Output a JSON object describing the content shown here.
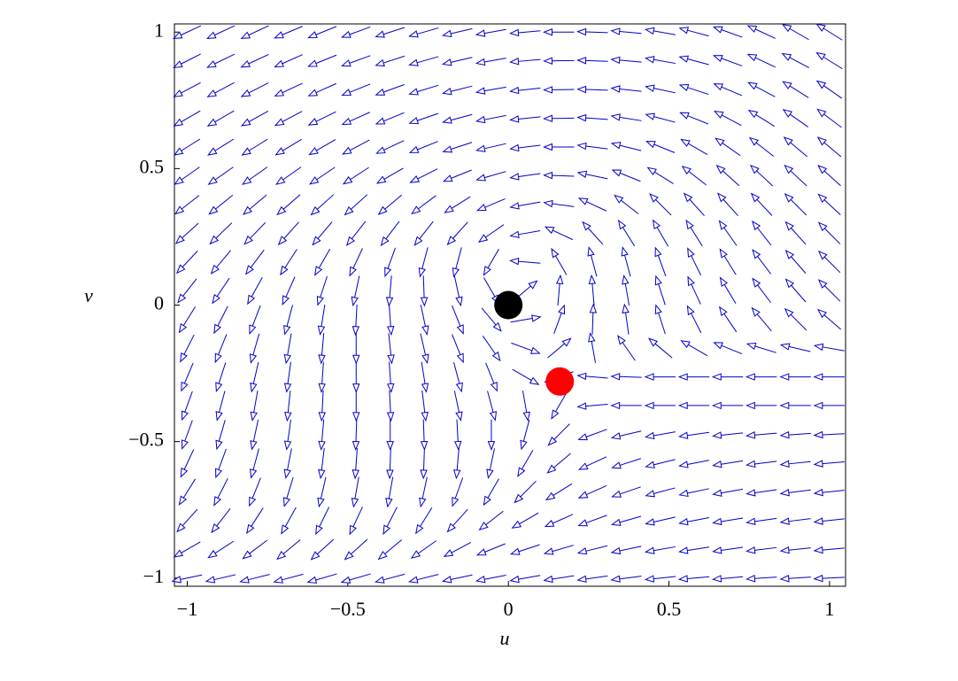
{
  "chart_data": {
    "type": "vectorfield",
    "xlabel": "u",
    "ylabel": "v",
    "xlim": [
      -1.04,
      1.05
    ],
    "ylim": [
      -1.03,
      1.03
    ],
    "xticks": [
      {
        "value": -1,
        "label": "−1"
      },
      {
        "value": -0.5,
        "label": "−0.5"
      },
      0,
      0.5,
      1
    ],
    "yticks": [
      {
        "value": -1,
        "label": "−1"
      },
      {
        "value": -0.5,
        "label": "−0.5"
      },
      0,
      0.5,
      1
    ],
    "arrow_color": "#0000cc",
    "x": [
      -1,
      -0.895,
      -0.789,
      -0.684,
      -0.579,
      -0.474,
      -0.368,
      -0.263,
      -0.158,
      -0.053,
      0.053,
      0.158,
      0.263,
      0.368,
      0.474,
      0.579,
      0.684,
      0.789,
      0.895,
      1
    ],
    "y": [
      1,
      0.895,
      0.789,
      0.684,
      0.579,
      0.474,
      0.368,
      0.263,
      0.158,
      0.053,
      -0.053,
      -0.158,
      -0.263,
      -0.368,
      -0.474,
      -0.579,
      -0.684,
      -0.789,
      -0.895,
      -1
    ],
    "angles": [
      [
        205,
        205,
        205,
        203,
        202,
        200,
        198,
        196,
        193,
        190,
        185,
        180,
        178,
        175,
        170,
        165,
        160,
        155,
        150,
        148
      ],
      [
        207,
        206,
        205,
        204,
        202,
        200,
        198,
        196,
        193,
        190,
        185,
        181,
        178,
        175,
        170,
        165,
        160,
        155,
        152,
        148
      ],
      [
        208,
        208,
        207,
        205,
        204,
        202,
        200,
        197,
        194,
        190,
        186,
        181,
        178,
        174,
        168,
        162,
        157,
        152,
        148,
        145
      ],
      [
        210,
        210,
        209,
        208,
        206,
        204,
        202,
        199,
        195,
        191,
        186,
        181,
        176,
        171,
        165,
        158,
        152,
        148,
        145,
        143
      ],
      [
        212,
        212,
        212,
        211,
        210,
        208,
        205,
        202,
        198,
        193,
        187,
        180,
        173,
        166,
        158,
        150,
        145,
        142,
        140,
        140
      ],
      [
        215,
        215,
        215,
        215,
        214,
        213,
        210,
        207,
        202,
        196,
        188,
        178,
        168,
        158,
        148,
        142,
        138,
        137,
        137,
        138
      ],
      [
        218,
        219,
        220,
        221,
        222,
        222,
        220,
        217,
        212,
        203,
        190,
        172,
        155,
        142,
        135,
        132,
        132,
        133,
        135,
        137
      ],
      [
        222,
        224,
        226,
        228,
        230,
        232,
        233,
        232,
        228,
        215,
        190,
        155,
        132,
        122,
        120,
        122,
        125,
        128,
        132,
        135
      ],
      [
        227,
        230,
        233,
        237,
        240,
        245,
        250,
        255,
        255,
        240,
        175,
        120,
        105,
        105,
        110,
        116,
        122,
        127,
        131,
        135
      ],
      [
        232,
        236,
        241,
        246,
        252,
        258,
        265,
        272,
        282,
        300,
        40,
        85,
        95,
        100,
        108,
        115,
        121,
        127,
        131,
        135
      ],
      [
        238,
        243,
        249,
        255,
        261,
        267,
        274,
        282,
        292,
        310,
        10,
        70,
        88,
        98,
        108,
        117,
        124,
        130,
        135,
        139
      ],
      [
        243,
        248,
        254,
        260,
        265,
        270,
        276,
        283,
        292,
        305,
        340,
        40,
        100,
        125,
        140,
        150,
        158,
        163,
        167,
        170
      ],
      [
        247,
        252,
        257,
        262,
        266,
        270,
        274,
        279,
        285,
        292,
        330,
        200,
        175,
        178,
        180,
        180,
        180,
        180,
        180,
        180
      ],
      [
        250,
        255,
        260,
        264,
        267,
        270,
        273,
        277,
        282,
        285,
        280,
        240,
        185,
        180,
        180,
        180,
        180,
        180,
        180,
        180
      ],
      [
        250,
        254,
        258,
        262,
        265,
        268,
        270,
        272,
        273,
        270,
        255,
        225,
        200,
        193,
        190,
        188,
        186,
        185,
        184,
        183
      ],
      [
        245,
        250,
        255,
        259,
        263,
        266,
        268,
        268,
        265,
        258,
        240,
        220,
        205,
        198,
        194,
        191,
        189,
        187,
        186,
        185
      ],
      [
        238,
        243,
        248,
        253,
        257,
        260,
        260,
        258,
        250,
        240,
        225,
        212,
        204,
        199,
        195,
        192,
        190,
        188,
        187,
        186
      ],
      [
        228,
        232,
        237,
        241,
        244,
        245,
        243,
        238,
        228,
        218,
        210,
        204,
        200,
        196,
        193,
        191,
        189,
        188,
        187,
        186
      ],
      [
        210,
        213,
        217,
        220,
        222,
        222,
        220,
        215,
        208,
        202,
        198,
        196,
        194,
        192,
        190,
        189,
        188,
        187,
        186,
        185
      ],
      [
        192,
        193,
        194,
        195,
        196,
        196,
        195,
        194,
        192,
        191,
        190,
        189,
        188,
        187,
        186,
        185,
        185,
        184,
        184,
        183
      ]
    ],
    "points": [
      {
        "x": 0,
        "y": 0,
        "color": "#000000"
      },
      {
        "x": 0.16,
        "y": -0.28,
        "color": "#ff0000"
      }
    ]
  }
}
